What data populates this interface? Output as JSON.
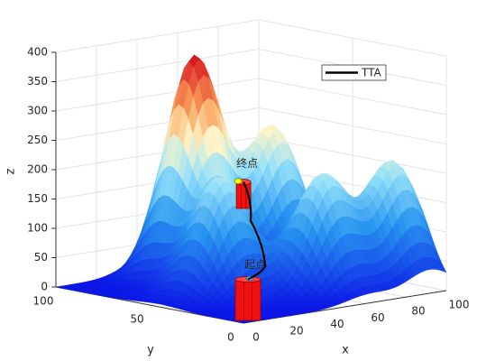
{
  "chart_data": {
    "type": "surface3d",
    "xlabel": "x",
    "ylabel": "y",
    "zlabel": "z",
    "xlim": [
      0,
      100
    ],
    "xticks": [
      0,
      20,
      40,
      60,
      80,
      100
    ],
    "ylim": [
      0,
      100
    ],
    "yticks": [
      0,
      50,
      100
    ],
    "zlim": [
      0,
      400
    ],
    "zticks": [
      0,
      50,
      100,
      150,
      200,
      250,
      300,
      350,
      400
    ],
    "grid": true,
    "peaks": {
      "x": [
        45,
        30,
        62,
        75,
        92
      ],
      "y": [
        75,
        45,
        25,
        65,
        20
      ],
      "z": [
        380,
        200,
        200,
        250,
        210
      ]
    },
    "series": [
      {
        "name": "TTA",
        "color": "#000000",
        "x": [
          5,
          20,
          22,
          25
        ],
        "y": [
          3,
          10,
          20,
          27
        ],
        "z": [
          70,
          80,
          150,
          210
        ]
      }
    ],
    "start_label": "起点",
    "end_label": "终点",
    "legend": "top-right"
  }
}
